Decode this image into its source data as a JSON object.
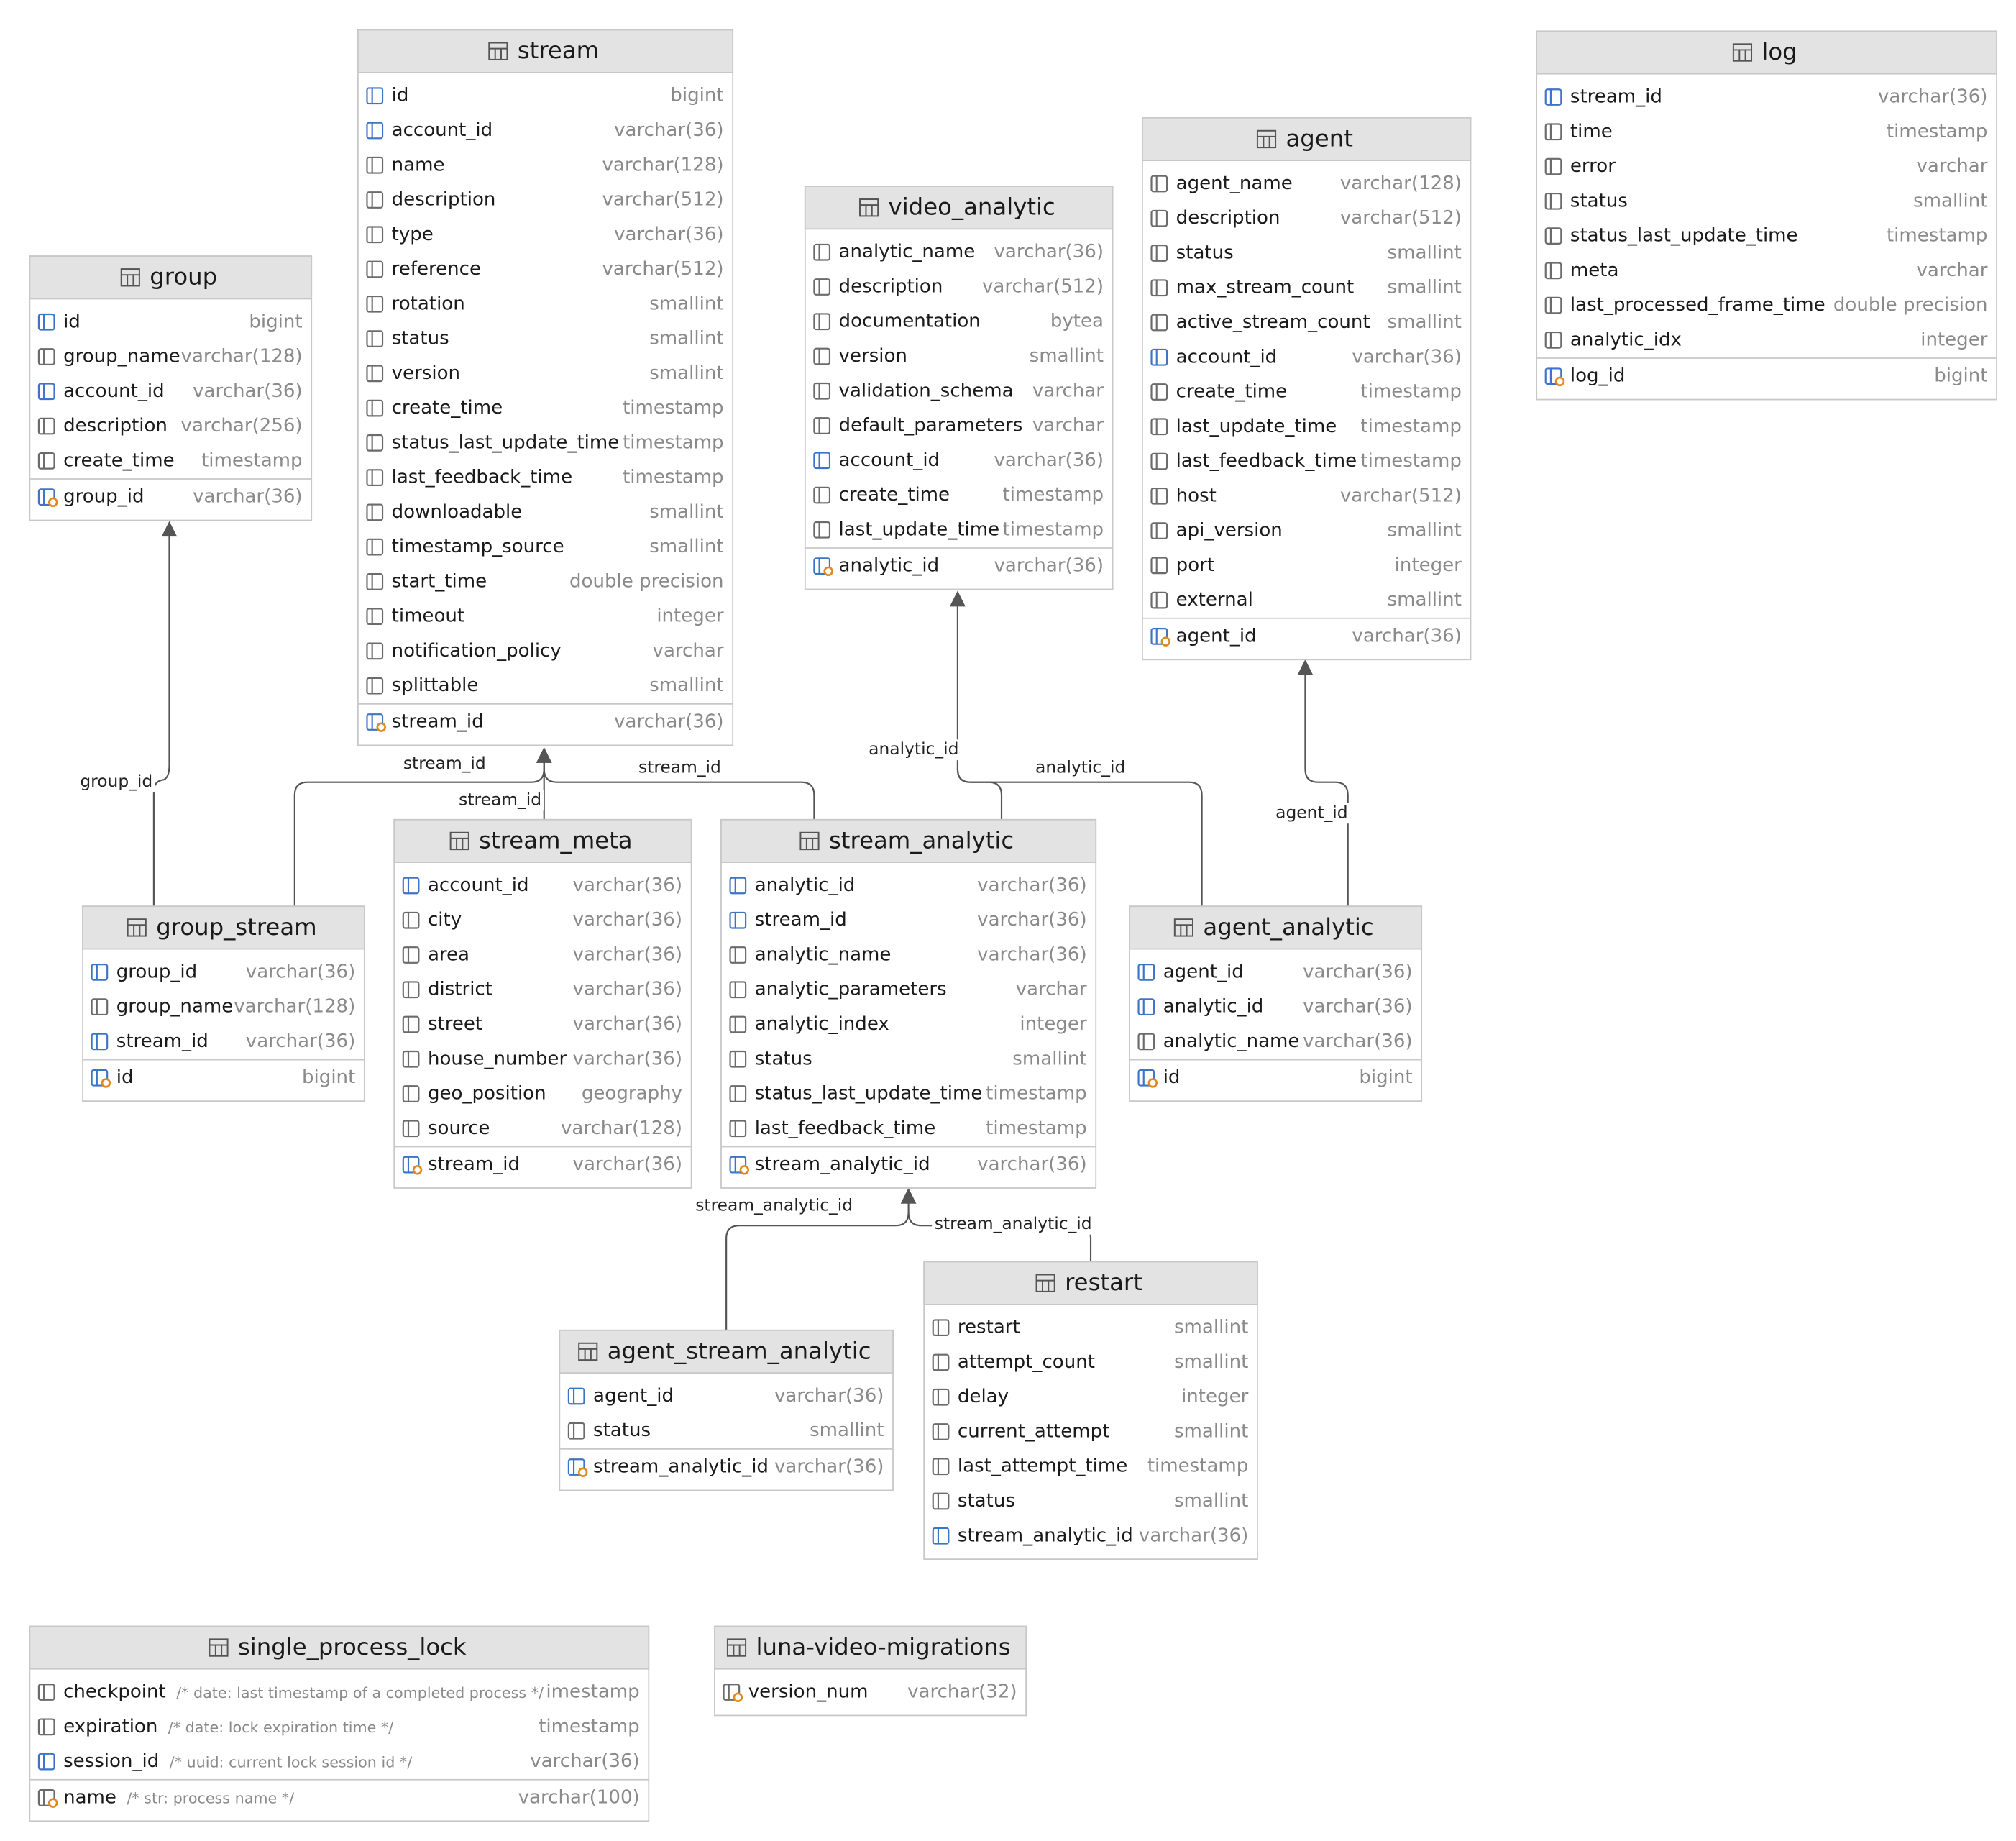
{
  "tables": [
    {
      "name": "stream",
      "columns": [
        {
          "name": "id",
          "type": "bigint"
        },
        {
          "name": "account_id",
          "type": "varchar(36)"
        },
        {
          "name": "name",
          "type": "varchar(128)"
        },
        {
          "name": "description",
          "type": "varchar(512)"
        },
        {
          "name": "type",
          "type": "varchar(36)"
        },
        {
          "name": "reference",
          "type": "varchar(512)"
        },
        {
          "name": "rotation",
          "type": "smallint"
        },
        {
          "name": "status",
          "type": "smallint"
        },
        {
          "name": "version",
          "type": "smallint"
        },
        {
          "name": "create_time",
          "type": "timestamp"
        },
        {
          "name": "status_last_update_time",
          "type": "timestamp"
        },
        {
          "name": "last_feedback_time",
          "type": "timestamp"
        },
        {
          "name": "downloadable",
          "type": "smallint"
        },
        {
          "name": "timestamp_source",
          "type": "smallint"
        },
        {
          "name": "start_time",
          "type": "double precision"
        },
        {
          "name": "timeout",
          "type": "integer"
        },
        {
          "name": "notification_policy",
          "type": "varchar"
        },
        {
          "name": "splittable",
          "type": "smallint"
        }
      ],
      "keys": [
        {
          "name": "stream_id",
          "type": "varchar(36)"
        }
      ]
    },
    {
      "name": "group",
      "columns": [
        {
          "name": "id",
          "type": "bigint"
        },
        {
          "name": "group_name",
          "type": "varchar(128)"
        },
        {
          "name": "account_id",
          "type": "varchar(36)"
        },
        {
          "name": "description",
          "type": "varchar(256)"
        },
        {
          "name": "create_time",
          "type": "timestamp"
        }
      ],
      "keys": [
        {
          "name": "group_id",
          "type": "varchar(36)"
        }
      ]
    },
    {
      "name": "log",
      "columns": [
        {
          "name": "stream_id",
          "type": "varchar(36)"
        },
        {
          "name": "time",
          "type": "timestamp"
        },
        {
          "name": "error",
          "type": "varchar"
        },
        {
          "name": "status",
          "type": "smallint"
        },
        {
          "name": "status_last_update_time",
          "type": "timestamp"
        },
        {
          "name": "meta",
          "type": "varchar"
        },
        {
          "name": "last_processed_frame_time",
          "type": "double precision"
        },
        {
          "name": "analytic_idx",
          "type": "integer"
        }
      ],
      "keys": [
        {
          "name": "log_id",
          "type": "bigint"
        }
      ]
    },
    {
      "name": "agent",
      "columns": [
        {
          "name": "agent_name",
          "type": "varchar(128)"
        },
        {
          "name": "description",
          "type": "varchar(512)"
        },
        {
          "name": "status",
          "type": "smallint"
        },
        {
          "name": "max_stream_count",
          "type": "smallint"
        },
        {
          "name": "active_stream_count",
          "type": "smallint"
        },
        {
          "name": "account_id",
          "type": "varchar(36)"
        },
        {
          "name": "create_time",
          "type": "timestamp"
        },
        {
          "name": "last_update_time",
          "type": "timestamp"
        },
        {
          "name": "last_feedback_time",
          "type": "timestamp"
        },
        {
          "name": "host",
          "type": "varchar(512)"
        },
        {
          "name": "api_version",
          "type": "smallint"
        },
        {
          "name": "port",
          "type": "integer"
        },
        {
          "name": "external",
          "type": "smallint"
        }
      ],
      "keys": [
        {
          "name": "agent_id",
          "type": "varchar(36)"
        }
      ]
    },
    {
      "name": "video_analytic",
      "columns": [
        {
          "name": "analytic_name",
          "type": "varchar(36)"
        },
        {
          "name": "description",
          "type": "varchar(512)"
        },
        {
          "name": "documentation",
          "type": "bytea"
        },
        {
          "name": "version",
          "type": "smallint"
        },
        {
          "name": "validation_schema",
          "type": "varchar"
        },
        {
          "name": "default_parameters",
          "type": "varchar"
        },
        {
          "name": "account_id",
          "type": "varchar(36)"
        },
        {
          "name": "create_time",
          "type": "timestamp"
        },
        {
          "name": "last_update_time",
          "type": "timestamp"
        }
      ],
      "keys": [
        {
          "name": "analytic_id",
          "type": "varchar(36)"
        }
      ]
    },
    {
      "name": "group_stream",
      "columns": [
        {
          "name": "group_id",
          "type": "varchar(36)"
        },
        {
          "name": "group_name",
          "type": "varchar(128)"
        },
        {
          "name": "stream_id",
          "type": "varchar(36)"
        }
      ],
      "keys": [
        {
          "name": "id",
          "type": "bigint"
        }
      ]
    },
    {
      "name": "stream_meta",
      "columns": [
        {
          "name": "account_id",
          "type": "varchar(36)"
        },
        {
          "name": "city",
          "type": "varchar(36)"
        },
        {
          "name": "area",
          "type": "varchar(36)"
        },
        {
          "name": "district",
          "type": "varchar(36)"
        },
        {
          "name": "street",
          "type": "varchar(36)"
        },
        {
          "name": "house_number",
          "type": "varchar(36)"
        },
        {
          "name": "geo_position",
          "type": "geography"
        },
        {
          "name": "source",
          "type": "varchar(128)"
        }
      ],
      "keys": [
        {
          "name": "stream_id",
          "type": "varchar(36)"
        }
      ]
    },
    {
      "name": "stream_analytic",
      "columns": [
        {
          "name": "analytic_id",
          "type": "varchar(36)"
        },
        {
          "name": "stream_id",
          "type": "varchar(36)"
        },
        {
          "name": "analytic_name",
          "type": "varchar(36)"
        },
        {
          "name": "analytic_parameters",
          "type": "varchar"
        },
        {
          "name": "analytic_index",
          "type": "integer"
        },
        {
          "name": "status",
          "type": "smallint"
        },
        {
          "name": "status_last_update_time",
          "type": "timestamp"
        },
        {
          "name": "last_feedback_time",
          "type": "timestamp"
        }
      ],
      "keys": [
        {
          "name": "stream_analytic_id",
          "type": "varchar(36)"
        }
      ]
    },
    {
      "name": "agent_analytic",
      "columns": [
        {
          "name": "agent_id",
          "type": "varchar(36)"
        },
        {
          "name": "analytic_id",
          "type": "varchar(36)"
        },
        {
          "name": "analytic_name",
          "type": "varchar(36)"
        }
      ],
      "keys": [
        {
          "name": "id",
          "type": "bigint"
        }
      ]
    },
    {
      "name": "restart",
      "columns": [
        {
          "name": "restart",
          "type": "smallint"
        },
        {
          "name": "attempt_count",
          "type": "smallint"
        },
        {
          "name": "delay",
          "type": "integer"
        },
        {
          "name": "current_attempt",
          "type": "smallint"
        },
        {
          "name": "last_attempt_time",
          "type": "timestamp"
        },
        {
          "name": "status",
          "type": "smallint"
        },
        {
          "name": "stream_analytic_id",
          "type": "varchar(36)"
        }
      ],
      "keys": []
    },
    {
      "name": "agent_stream_analytic",
      "columns": [
        {
          "name": "agent_id",
          "type": "varchar(36)"
        },
        {
          "name": "status",
          "type": "smallint"
        }
      ],
      "keys": [
        {
          "name": "stream_analytic_id",
          "type": "varchar(36)"
        }
      ]
    },
    {
      "name": "single_process_lock",
      "columns": [
        {
          "name": "checkpoint",
          "comment": "/* date: last timestamp of a completed process */",
          "type": "imestamp"
        },
        {
          "name": "expiration",
          "comment": "/* date: lock expiration time */",
          "type": "timestamp"
        },
        {
          "name": "session_id",
          "comment": "/* uuid: current lock session id */",
          "type": "varchar(36)"
        }
      ],
      "keys": [
        {
          "name": "name",
          "comment": "/* str: process name */",
          "type": "varchar(100)"
        }
      ]
    },
    {
      "name": "luna-video-migrations",
      "columns": [],
      "keys": [
        {
          "name": "version_num",
          "type": "varchar(32)"
        }
      ]
    }
  ],
  "edges": [
    {
      "label": "group_id"
    },
    {
      "label": "stream_id"
    },
    {
      "label": "stream_id"
    },
    {
      "label": "stream_id"
    },
    {
      "label": "analytic_id"
    },
    {
      "label": "analytic_id"
    },
    {
      "label": "agent_id"
    },
    {
      "label": "stream_analytic_id"
    },
    {
      "label": "stream_analytic_id"
    }
  ]
}
